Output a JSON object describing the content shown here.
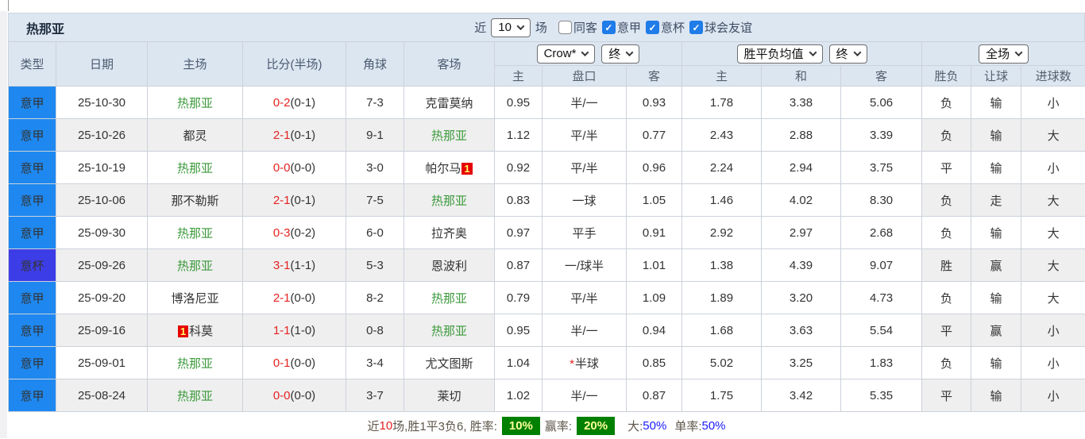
{
  "title": "热那亚",
  "icons": {
    "chevron_down": "∨",
    "check": "✓"
  },
  "colors": {
    "league_badge": "#1e88f0",
    "cup_badge": "#3d3de8",
    "team_self_green": "#3c9a3c",
    "score_red": "#e62222",
    "result_green": "#4ca64c",
    "result_red": "#f55353",
    "result_blue": "#6b6bff",
    "rate_badge_bg": "#008000",
    "rate_badge_text": "#ffff99",
    "rate_blue": "#1a1aff"
  },
  "filters": {
    "recent_label": "近",
    "recent_value": "10",
    "unit_label": "场",
    "checkboxes": [
      {
        "label": "同客",
        "checked": false
      },
      {
        "label": "意甲",
        "checked": true
      },
      {
        "label": "意杯",
        "checked": true
      },
      {
        "label": "球会友谊",
        "checked": true
      }
    ]
  },
  "selects": {
    "bookmaker": "Crow*",
    "bookmaker_state": "终",
    "average": "胜平负均值",
    "average_state": "终",
    "period": "全场"
  },
  "table": {
    "columns": {
      "type": "类型",
      "date": "日期",
      "home": "主场",
      "score": "比分(半场)",
      "corner": "角球",
      "away": "客场"
    },
    "odds_sub": {
      "home": "主",
      "handicap": "盘口",
      "away": "客"
    },
    "avg_sub": {
      "home": "主",
      "draw": "和",
      "away": "客"
    },
    "result_sub": {
      "wdl": "胜负",
      "handicap": "让球",
      "goals": "进球数"
    },
    "rows": [
      {
        "type": "意甲",
        "cup": false,
        "date": "25-10-30",
        "home": {
          "name": "热那亚",
          "self": true
        },
        "score_ft": "0-2",
        "score_ht": "(0-1)",
        "corner": "7-3",
        "away": {
          "name": "克雷莫纳",
          "self": false
        },
        "odds": [
          "0.95",
          "半/一",
          "0.93"
        ],
        "handicap_star": false,
        "avg": [
          "1.78",
          "3.38",
          "5.06"
        ],
        "result": [
          {
            "text": "负",
            "color": "green"
          },
          {
            "text": "输",
            "color": "green"
          },
          {
            "text": "小",
            "color": "green"
          }
        ]
      },
      {
        "type": "意甲",
        "cup": false,
        "date": "25-10-26",
        "home": {
          "name": "都灵",
          "self": false
        },
        "score_ft": "2-1",
        "score_ht": "(0-1)",
        "corner": "9-1",
        "away": {
          "name": "热那亚",
          "self": true
        },
        "odds": [
          "1.12",
          "平/半",
          "0.77"
        ],
        "handicap_star": false,
        "avg": [
          "2.43",
          "2.88",
          "3.39"
        ],
        "result": [
          {
            "text": "负",
            "color": "green"
          },
          {
            "text": "输",
            "color": "green"
          },
          {
            "text": "大",
            "color": "red"
          }
        ]
      },
      {
        "type": "意甲",
        "cup": false,
        "date": "25-10-19",
        "home": {
          "name": "热那亚",
          "self": true
        },
        "score_ft": "0-0",
        "score_ht": "(0-0)",
        "corner": "3-0",
        "away": {
          "name": "帕尔马",
          "self": false,
          "badge": "1",
          "badge_pos": "after"
        },
        "odds": [
          "0.92",
          "平/半",
          "0.96"
        ],
        "handicap_star": false,
        "avg": [
          "2.24",
          "2.94",
          "3.75"
        ],
        "result": [
          {
            "text": "平",
            "color": "blue"
          },
          {
            "text": "输",
            "color": "green"
          },
          {
            "text": "小",
            "color": "green"
          }
        ]
      },
      {
        "type": "意甲",
        "cup": false,
        "date": "25-10-06",
        "home": {
          "name": "那不勒斯",
          "self": false
        },
        "score_ft": "2-1",
        "score_ht": "(0-1)",
        "corner": "7-5",
        "away": {
          "name": "热那亚",
          "self": true
        },
        "odds": [
          "0.83",
          "一球",
          "1.05"
        ],
        "handicap_star": false,
        "avg": [
          "1.46",
          "4.02",
          "8.30"
        ],
        "result": [
          {
            "text": "负",
            "color": "green"
          },
          {
            "text": "走",
            "color": "blue"
          },
          {
            "text": "大",
            "color": "red"
          }
        ]
      },
      {
        "type": "意甲",
        "cup": false,
        "date": "25-09-30",
        "home": {
          "name": "热那亚",
          "self": true
        },
        "score_ft": "0-3",
        "score_ht": "(0-2)",
        "corner": "6-0",
        "away": {
          "name": "拉齐奥",
          "self": false
        },
        "odds": [
          "0.97",
          "平手",
          "0.91"
        ],
        "handicap_star": false,
        "avg": [
          "2.92",
          "2.97",
          "2.68"
        ],
        "result": [
          {
            "text": "负",
            "color": "green"
          },
          {
            "text": "输",
            "color": "green"
          },
          {
            "text": "大",
            "color": "red"
          }
        ]
      },
      {
        "type": "意杯",
        "cup": true,
        "date": "25-09-26",
        "home": {
          "name": "热那亚",
          "self": true
        },
        "score_ft": "3-1",
        "score_ht": "(1-1)",
        "corner": "5-3",
        "away": {
          "name": "恩波利",
          "self": false
        },
        "odds": [
          "0.87",
          "一/球半",
          "1.01"
        ],
        "handicap_star": false,
        "avg": [
          "1.38",
          "4.39",
          "9.07"
        ],
        "result": [
          {
            "text": "胜",
            "color": "red"
          },
          {
            "text": "赢",
            "color": "red"
          },
          {
            "text": "大",
            "color": "red"
          }
        ]
      },
      {
        "type": "意甲",
        "cup": false,
        "date": "25-09-20",
        "home": {
          "name": "博洛尼亚",
          "self": false
        },
        "score_ft": "2-1",
        "score_ht": "(0-0)",
        "corner": "8-2",
        "away": {
          "name": "热那亚",
          "self": true
        },
        "odds": [
          "0.79",
          "平/半",
          "1.09"
        ],
        "handicap_star": false,
        "avg": [
          "1.89",
          "3.20",
          "4.73"
        ],
        "result": [
          {
            "text": "负",
            "color": "green"
          },
          {
            "text": "输",
            "color": "green"
          },
          {
            "text": "大",
            "color": "red"
          }
        ]
      },
      {
        "type": "意甲",
        "cup": false,
        "date": "25-09-16",
        "home": {
          "name": "科莫",
          "self": false,
          "badge": "1",
          "badge_pos": "before"
        },
        "score_ft": "1-1",
        "score_ht": "(1-0)",
        "corner": "0-8",
        "away": {
          "name": "热那亚",
          "self": true
        },
        "odds": [
          "0.95",
          "半/一",
          "0.94"
        ],
        "handicap_star": false,
        "avg": [
          "1.68",
          "3.63",
          "5.54"
        ],
        "result": [
          {
            "text": "平",
            "color": "blue"
          },
          {
            "text": "赢",
            "color": "red"
          },
          {
            "text": "小",
            "color": "green"
          }
        ]
      },
      {
        "type": "意甲",
        "cup": false,
        "date": "25-09-01",
        "home": {
          "name": "热那亚",
          "self": true
        },
        "score_ft": "0-1",
        "score_ht": "(0-0)",
        "corner": "3-4",
        "away": {
          "name": "尤文图斯",
          "self": false
        },
        "odds": [
          "1.04",
          "半球",
          "0.85"
        ],
        "handicap_star": true,
        "avg": [
          "5.02",
          "3.25",
          "1.83"
        ],
        "result": [
          {
            "text": "负",
            "color": "green"
          },
          {
            "text": "输",
            "color": "green"
          },
          {
            "text": "小",
            "color": "green"
          }
        ]
      },
      {
        "type": "意甲",
        "cup": false,
        "date": "25-08-24",
        "home": {
          "name": "热那亚",
          "self": true
        },
        "score_ft": "0-0",
        "score_ht": "(0-0)",
        "corner": "3-7",
        "away": {
          "name": "莱切",
          "self": false
        },
        "odds": [
          "1.02",
          "半/一",
          "0.87"
        ],
        "handicap_star": false,
        "avg": [
          "1.75",
          "3.42",
          "5.35"
        ],
        "result": [
          {
            "text": "平",
            "color": "blue"
          },
          {
            "text": "输",
            "color": "green"
          },
          {
            "text": "小",
            "color": "green"
          }
        ]
      }
    ]
  },
  "footer": {
    "recent_label": "近",
    "recent_count": "10",
    "record_text": "场,胜1平3负6, 胜率:",
    "rate_badge": "10%",
    "win_label": "赢率:",
    "win_badge": "20%",
    "big_label": "大:",
    "big_value": "50%",
    "single_label": "单率:",
    "single_value": "50%"
  }
}
